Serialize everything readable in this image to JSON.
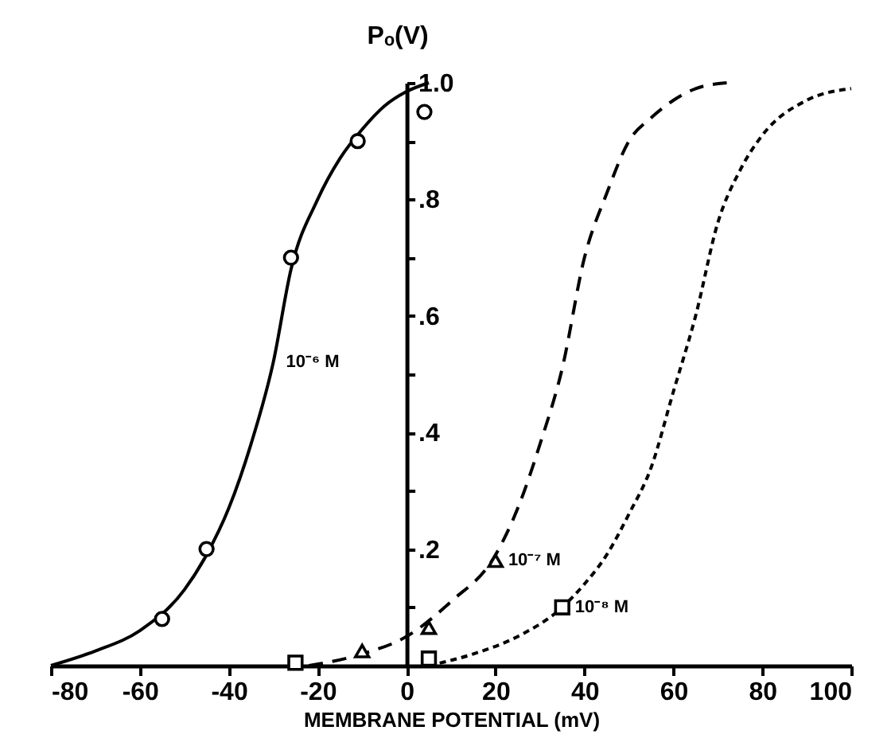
{
  "chart_data": {
    "type": "line",
    "xlabel": "MEMBRANE POTENTIAL (mV)",
    "ylabel": "Pₒ(V)",
    "xlim": [
      -80,
      100
    ],
    "xticks": [
      -80,
      -60,
      -40,
      -20,
      0,
      20,
      40,
      60,
      80,
      100
    ],
    "ylim": [
      0,
      1.0
    ],
    "yticks": [
      {
        "value": 0.1,
        "label": null
      },
      {
        "value": 0.2,
        "label": ".2"
      },
      {
        "value": 0.3,
        "label": null
      },
      {
        "value": 0.4,
        "label": ".4"
      },
      {
        "value": 0.5,
        "label": null
      },
      {
        "value": 0.6,
        "label": ".6"
      },
      {
        "value": 0.7,
        "label": null
      },
      {
        "value": 0.8,
        "label": ".8"
      },
      {
        "value": 0.9,
        "label": null
      },
      {
        "value": 1.0,
        "label": "1.0"
      }
    ],
    "grid": false,
    "series": [
      {
        "color": "#000000",
        "line_style": "solid",
        "x": [
          -80,
          -70,
          -60,
          -50,
          -45,
          -40,
          -35,
          -30,
          -26,
          -20,
          -15,
          -10,
          -5,
          0,
          5
        ],
        "values": [
          0.0,
          0.025,
          0.06,
          0.13,
          0.19,
          0.27,
          0.38,
          0.52,
          0.68,
          0.8,
          0.87,
          0.92,
          0.96,
          0.985,
          1.0
        ]
      },
      {
        "color": "#000000",
        "line_style": "dashed",
        "x": [
          -22,
          -10,
          0,
          10,
          20,
          25,
          30,
          35,
          40,
          45,
          50,
          55,
          60,
          65,
          72
        ],
        "values": [
          0.0,
          0.02,
          0.05,
          0.11,
          0.19,
          0.27,
          0.38,
          0.51,
          0.7,
          0.81,
          0.9,
          0.94,
          0.97,
          0.99,
          1.0
        ]
      },
      {
        "color": "#000000",
        "line_style": "dotted",
        "x": [
          5,
          15,
          25,
          35,
          40,
          45,
          50,
          55,
          60,
          65,
          70,
          75,
          80,
          90,
          100
        ],
        "values": [
          0.0,
          0.02,
          0.05,
          0.1,
          0.14,
          0.19,
          0.26,
          0.34,
          0.47,
          0.6,
          0.76,
          0.85,
          0.91,
          0.97,
          0.99
        ]
      },
      {
        "type": "scatter",
        "color": "#000000",
        "marker": "circle",
        "x": [
          -55,
          -45,
          -26,
          -11,
          4
        ],
        "values": [
          0.08,
          0.2,
          0.7,
          0.9,
          0.95
        ]
      },
      {
        "type": "scatter",
        "color": "#000000",
        "marker": "triangle",
        "x": [
          -10,
          5,
          20
        ],
        "values": [
          0.025,
          0.065,
          0.18
        ]
      },
      {
        "type": "scatter",
        "color": "#000000",
        "marker": "square",
        "x": [
          -25,
          5,
          35
        ],
        "values": [
          0.005,
          0.012,
          0.1
        ]
      }
    ],
    "annotations": [
      {
        "text": "10⁻⁶ M",
        "x": -30,
        "y": 0.52
      },
      {
        "text": "10⁻⁷ M",
        "x": 20,
        "y": 0.18
      },
      {
        "text": "10⁻⁸ M",
        "x": 35,
        "y": 0.1
      }
    ]
  }
}
